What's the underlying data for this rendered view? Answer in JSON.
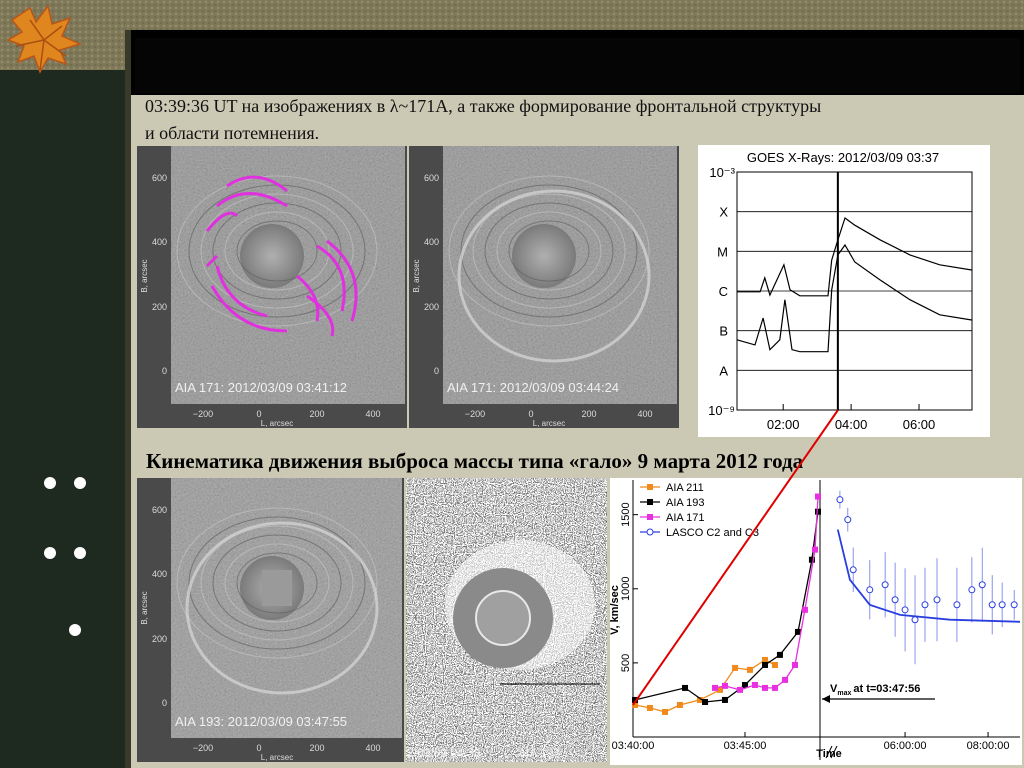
{
  "text": {
    "paragraph": [
      "03:39:36 UT на изображениях в λ~171А, а также формирование фронтальной структуры",
      "и области потемнения."
    ],
    "subheading": "Кинематика движения выброса массы типа «гало» 9 марта 2012 года"
  },
  "images": [
    {
      "label": "AIA 171: 2012/03/09 03:41:12"
    },
    {
      "label": "AIA 171: 2012/03/09 03:44:24"
    },
    {
      "label": "AIA 193: 2012/03/09 03:47:55"
    },
    {
      "label": "2/03/09 04:38",
      "label2": "AIA 193:"
    }
  ],
  "image_axes": {
    "yticks": [
      "0",
      "200",
      "400",
      "600"
    ],
    "xticks": [
      "−200",
      "0",
      "200",
      "400"
    ],
    "ylabel": "B, arcsec",
    "xlabel": "L, arcsec"
  },
  "chart_data": [
    {
      "type": "line",
      "title": "GOES X-Rays: 2012/03/09 03:37",
      "xlim": [
        0.64,
        7.56
      ],
      "xticks": [
        {
          "value": 2,
          "label": "02:00"
        },
        {
          "value": 4,
          "label": "04:00"
        },
        {
          "value": 6,
          "label": "06:00"
        }
      ],
      "ylim": [
        -9,
        -3
      ],
      "yticks": [
        {
          "value": -3,
          "label": "10⁻³"
        },
        {
          "value": -4,
          "label": "X"
        },
        {
          "value": -5,
          "label": "M"
        },
        {
          "value": -6,
          "label": "C"
        },
        {
          "value": -7,
          "label": "B"
        },
        {
          "value": -8,
          "label": "A"
        },
        {
          "value": -9,
          "label": "10⁻⁹"
        }
      ],
      "grid": true,
      "marker_x": 3.61,
      "series": [
        {
          "color": "#000000",
          "x": [
            0.64,
            1.32,
            1.46,
            1.61,
            2.02,
            2.2,
            2.49,
            3.32,
            3.43,
            3.61,
            3.82,
            4.11,
            4.85,
            5.73,
            6.61,
            7.55
          ],
          "values": [
            -6.02,
            -6.02,
            -5.67,
            -6.1,
            -5.34,
            -5.97,
            -6.12,
            -6.12,
            -5.22,
            -4.71,
            -4.16,
            -4.34,
            -4.71,
            -5.09,
            -5.34,
            -5.47
          ]
        },
        {
          "color": "#000000",
          "x": [
            0.64,
            1.17,
            1.41,
            1.61,
            1.9,
            2.05,
            2.26,
            2.49,
            3.32,
            3.43,
            3.61,
            3.82,
            4.11,
            4.85,
            5.73,
            6.61,
            7.55
          ],
          "values": [
            -7.23,
            -7.36,
            -6.68,
            -7.48,
            -7.23,
            -6.22,
            -7.48,
            -7.53,
            -7.53,
            -5.97,
            -5.09,
            -4.84,
            -5.27,
            -5.72,
            -6.22,
            -6.6,
            -6.73
          ]
        }
      ]
    },
    {
      "type": "line",
      "xlabel": "Time",
      "ylabel": "V, km/sec",
      "xlim": [
        [
          3.6667,
          3.8058
        ],
        [
          3.95,
          8.77
        ]
      ],
      "xticks": [
        {
          "value": 3.6667,
          "label": "03:40:00"
        },
        {
          "value": 3.75,
          "label": "03:45:00"
        },
        {
          "value": 6,
          "label": "06:00:00"
        },
        {
          "value": 8,
          "label": "08:00:00"
        }
      ],
      "ylim": [
        0,
        1700
      ],
      "yticks": [
        500,
        1000,
        1500
      ],
      "annotation": [
        "V",
        "max",
        "at t=03:47:56"
      ],
      "series": [
        {
          "name": "AIA 211",
          "color": "#f08a1c",
          "marker": "square",
          "x": [
            3.6682,
            3.6793,
            3.6905,
            3.7016,
            3.7165,
            3.7314,
            3.7426,
            3.7537,
            3.7649,
            3.7723
          ],
          "values": [
            216,
            196,
            169,
            216,
            250,
            318,
            466,
            453,
            520,
            486
          ]
        },
        {
          "name": "AIA 193",
          "color": "#000000",
          "marker": "square",
          "x": [
            3.6682,
            3.7054,
            3.7203,
            3.7351,
            3.75,
            3.7649,
            3.776,
            3.7894,
            3.7998,
            3.8043
          ],
          "values": [
            250,
            331,
            236,
            250,
            351,
            486,
            554,
            709,
            1196,
            1520
          ]
        },
        {
          "name": "AIA 171",
          "color": "#e830e0",
          "marker": "square",
          "x": [
            3.7277,
            3.7351,
            3.7463,
            3.7574,
            3.7649,
            3.7723,
            3.7798,
            3.7872,
            3.7946,
            3.8021,
            3.8043
          ],
          "values": [
            331,
            345,
            318,
            351,
            331,
            331,
            385,
            486,
            858,
            1264,
            1622
          ]
        },
        {
          "name": "LASCO C2 and C3",
          "color": "#2a3ee0",
          "marker": "circle",
          "x": [
            4.43,
            4.62,
            4.75,
            5.15,
            5.52,
            5.76,
            6.0,
            6.24,
            6.48,
            6.77,
            7.25,
            7.61,
            7.86,
            8.1,
            8.34,
            8.63
          ],
          "values": [
            1601,
            1466,
            1128,
            993,
            1027,
            926,
            858,
            791,
            892,
            926,
            892,
            993,
            1027,
            892,
            892,
            892
          ],
          "errors": [
            60,
            80,
            150,
            200,
            220,
            250,
            280,
            300,
            250,
            280,
            250,
            220,
            250,
            200,
            150,
            100
          ]
        }
      ],
      "fit": {
        "color": "#2a3ee0",
        "x": [
          4.38,
          4.67,
          5.15,
          5.88,
          7.08,
          8.77
        ],
        "values": [
          1399,
          1061,
          892,
          824,
          791,
          777
        ]
      }
    }
  ]
}
